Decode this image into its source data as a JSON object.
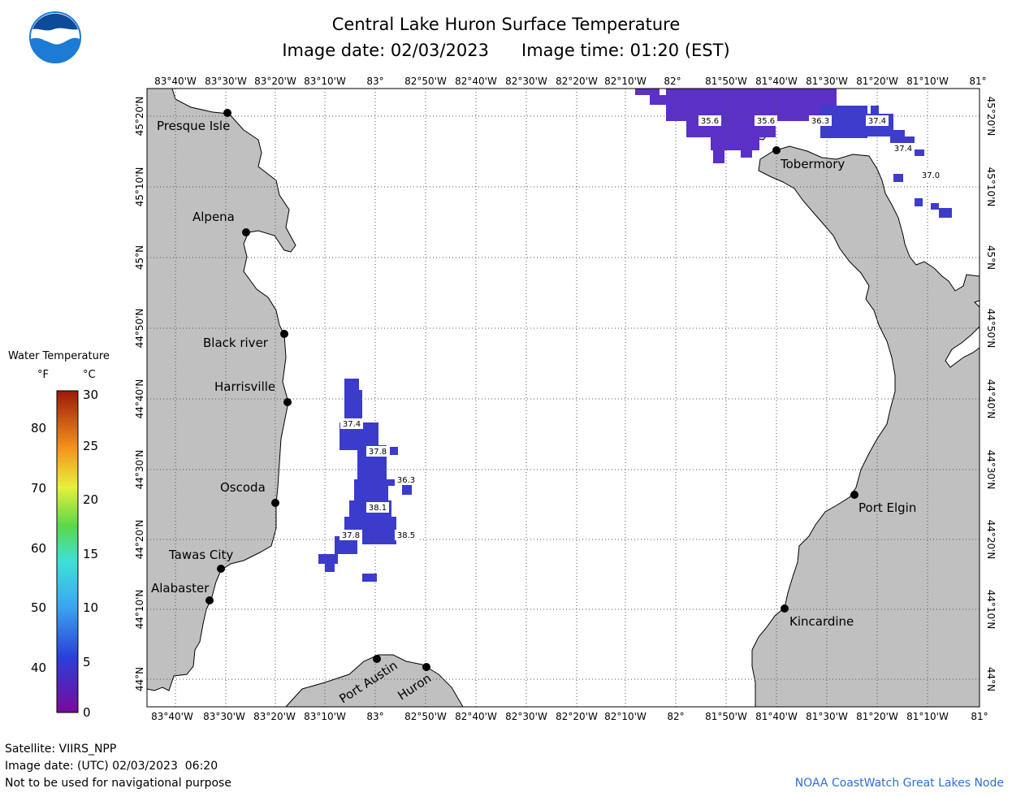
{
  "header": {
    "title": "Central Lake Huron Surface Temperature",
    "image_date_label": "Image date: 02/03/2023",
    "image_time_label": "Image time: 01:20 (EST)",
    "logo_text": "NOAA"
  },
  "map": {
    "lon_labels": [
      "83°40'W",
      "83°30'W",
      "83°20'W",
      "83°10'W",
      "83°",
      "82°50'W",
      "82°40'W",
      "82°30'W",
      "82°20'W",
      "82°10'W",
      "82°",
      "81°50'W",
      "81°40'W",
      "81°30'W",
      "81°20'W",
      "81°10'W",
      "81°"
    ],
    "lat_labels": [
      "45°20'N",
      "45°10'N",
      "45°N",
      "44°50'N",
      "44°40'N",
      "44°30'N",
      "44°20'N",
      "44°10'N",
      "44°N"
    ],
    "cities": [
      "Presque Isle",
      "Alpena",
      "Black river",
      "Harrisville",
      "Oscoda",
      "Tawas City",
      "Alabaster",
      "Port Austin",
      "Huron",
      "Tobermory",
      "Port Elgin",
      "Kincardine"
    ],
    "temperature_labels": [
      "35.6",
      "35.6",
      "36.3",
      "37.4",
      "37.4",
      "37.0",
      "37.4",
      "37.8",
      "36.3",
      "38.1",
      "37.8",
      "38.5"
    ],
    "colors": {
      "land": "#c0c0c0",
      "water": "#ffffff",
      "sst_cold": "#5a2fc0",
      "sst_warm": "#3b3ccc",
      "grid": "#555555"
    }
  },
  "legend": {
    "title": "Water Temperature",
    "unit_f": "°F",
    "unit_c": "°C",
    "fahrenheit_ticks": [
      "80",
      "70",
      "60",
      "50",
      "40"
    ],
    "celsius_ticks": [
      "30",
      "25",
      "20",
      "15",
      "10",
      "5",
      "0"
    ]
  },
  "footer": {
    "satellite": "Satellite: VIIRS_NPP",
    "utc_date": "Image date: (UTC) 02/03/2023  06:20",
    "disclaimer": "Not to be used for navigational purpose",
    "credit": "NOAA CoastWatch Great Lakes Node"
  }
}
